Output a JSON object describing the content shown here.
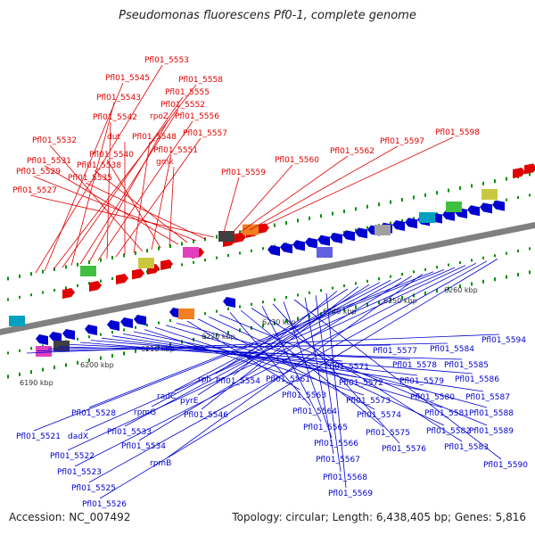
{
  "title": "Pseudomonas fluorescens Pf0-1, complete genome",
  "footer": {
    "accession": "Accession: NC_007492",
    "topology": "Topology: circular; Length: 6,438,405 bp; Genes: 5,816"
  },
  "colors": {
    "forward": "#e00000",
    "reverse": "#0000d0",
    "backbone": "#808080",
    "ticks": "#009000"
  },
  "scale_ticks": [
    "6190 kbp",
    "6200 kbp",
    "6210 kbp",
    "6220 kbp",
    "6230 kbp",
    "6240 kbp",
    "6250 kbp",
    "6260 kbp"
  ],
  "forward_genes": [
    "Pfl01_5553",
    "Pfl01_5545",
    "Pfl01_5558",
    "Pfl01_5555",
    "Pfl01_5543",
    "Pfl01_5552",
    "rpoZ",
    "Pfl01_5556",
    "Pfl01_5542",
    "Pfl01_5557",
    "dut",
    "Pfl01_5548",
    "Pfl01_5532",
    "Pfl01_5551",
    "Pfl01_5540",
    "gmk",
    "Pfl01_5531",
    "Pfl01_5538",
    "Pfl01_5529",
    "Pfl01_5535",
    "Pfl01_5527",
    "Pfl01_5559",
    "Pfl01_5560",
    "Pfl01_5562",
    "Pfl01_5597",
    "Pfl01_5598"
  ],
  "reverse_genes": [
    "Pfl01_5594",
    "Pfl01_5584",
    "Pfl01_5577",
    "Pfl01_5585",
    "Pfl01_5578",
    "Pfl01_5586",
    "Pfl01_5571",
    "Pfl01_5579",
    "Pfl01_5587",
    "Pfl01_5572",
    "Pfl01_5580",
    "Pfl01_5561",
    "Pfl01_5573",
    "Pfl01_5581",
    "Pfl01_5588",
    "Pfl01_5563",
    "Pfl01_5574",
    "Pfl01_5582",
    "Pfl01_5589",
    "Pfl01_5564",
    "Pfl01_5575",
    "Pfl01_5583",
    "Pfl01_5565",
    "Pfl01_5576",
    "Pfl01_5566",
    "Pfl01_5590",
    "Pfl01_5567",
    "Pfl01_5568",
    "Pfl01_5569",
    "Pfl01_5554",
    "rph",
    "Pfl01_5546",
    "pyrE",
    "radC",
    "rpmG",
    "Pfl01_5533",
    "Pfl01_5534",
    "rpmB",
    "Pfl01_5528",
    "Pfl01_5521",
    "dadX",
    "Pfl01_5522",
    "Pfl01_5523",
    "Pfl01_5525",
    "Pfl01_5526"
  ]
}
